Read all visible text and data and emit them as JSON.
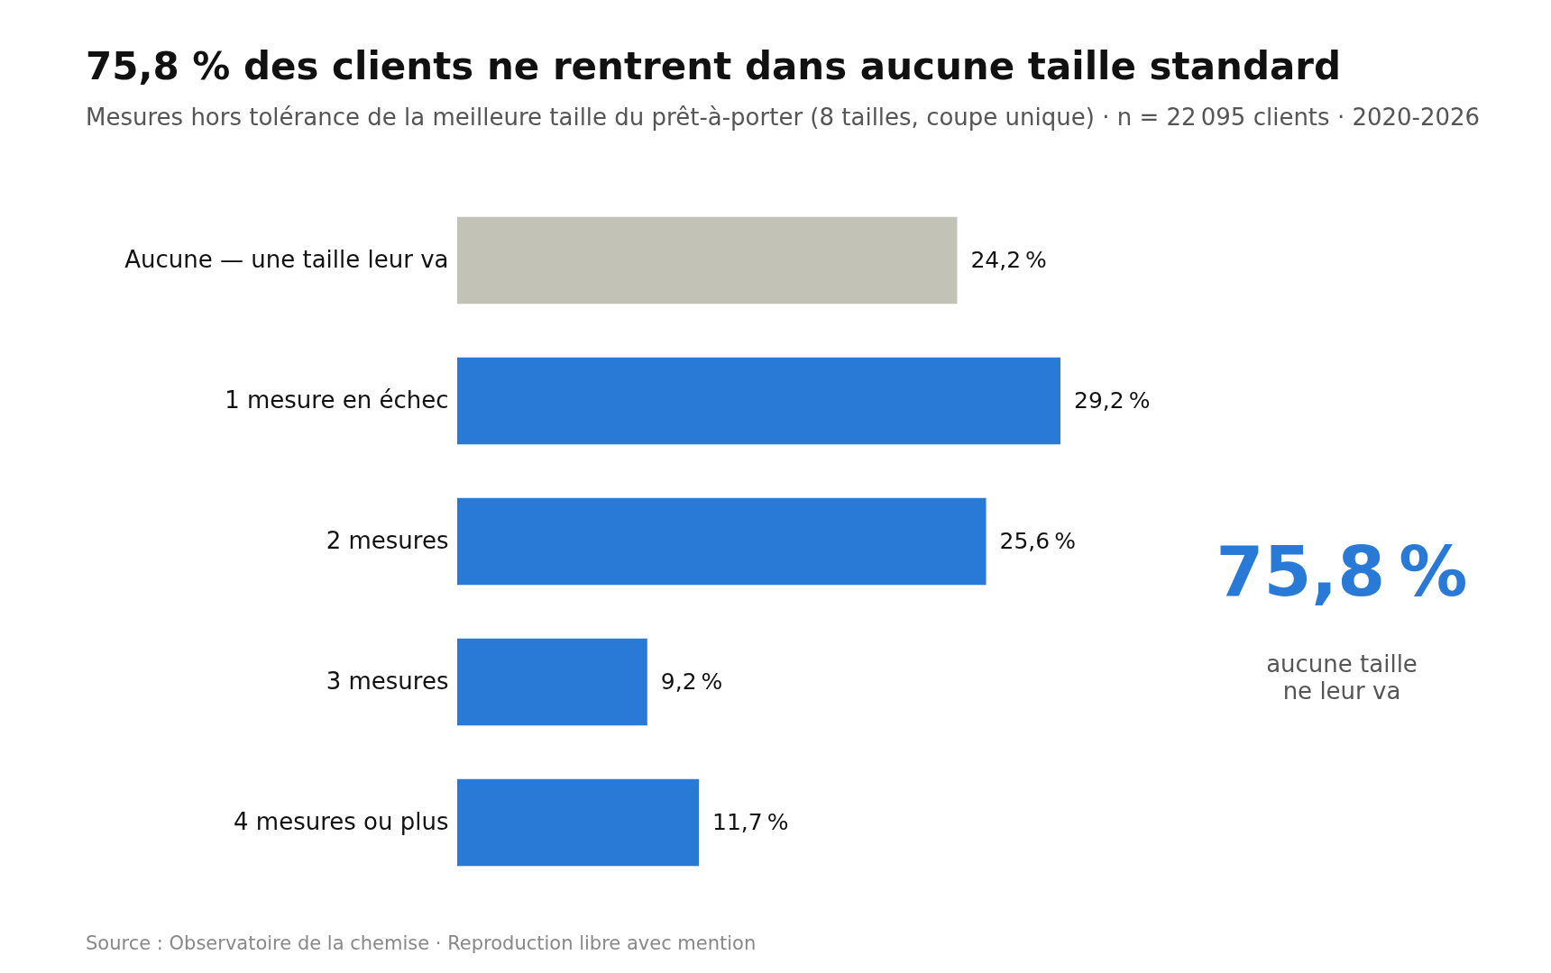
{
  "chart_data": {
    "type": "bar",
    "orientation": "horizontal",
    "title": "75,8 % des clients ne rentrent dans aucune taille standard",
    "subtitle": "Mesures hors tolérance de la meilleure taille du prêt-à-porter (8 tailles, coupe unique) · n = 22 095 clients · 2020-2026",
    "categories": [
      "Aucune — une taille leur va",
      "1 mesure en échec",
      "2 mesures",
      "3 mesures",
      "4 mesures ou plus"
    ],
    "values": [
      24.2,
      29.2,
      25.6,
      9.2,
      11.7
    ],
    "colors": [
      "#c2c3b6",
      "#2979d6",
      "#2979d6",
      "#2979d6",
      "#2979d6"
    ],
    "value_labels": [
      "24,2 %",
      "29,2 %",
      "25,6 %",
      "9,2 %",
      "11,7 %"
    ],
    "annotations": [
      "75,8 %",
      "aucune taille\nne leur va",
      "Source : Observatoire de la chemise · Reproduction libre avec mention"
    ]
  }
}
